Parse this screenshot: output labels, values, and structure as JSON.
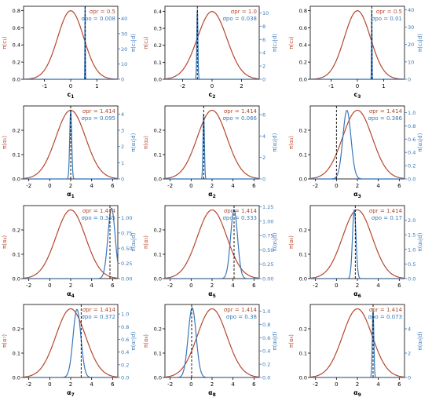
{
  "figure": {
    "background": "#ffffff"
  },
  "colors": {
    "prior": "#b5472d",
    "posterior": "#3a78b8",
    "axis": "#000000",
    "marker": "#000000"
  },
  "chart_data": [
    {
      "type": "line",
      "xlabel": "c",
      "xsub": "1",
      "ylabel_left": "π(c₁)",
      "ylabel_right": "π(c₁|d)",
      "annotation_pr": "σpr = 0.5",
      "annotation_po": "σpo = 0.008",
      "prior": {
        "mean": 0.0,
        "sd": 0.5
      },
      "posterior": {
        "mean": 0.55,
        "sd": 0.008
      },
      "marker": 0.55,
      "xlim": [
        -1.8,
        1.8
      ],
      "xticks": [
        -1,
        0,
        1
      ],
      "ylim_left": [
        0,
        0.85
      ],
      "yticks_left": [
        0.0,
        0.2,
        0.4,
        0.6,
        0.8
      ],
      "ylim_right": [
        0,
        48
      ],
      "yticks_right": [
        0,
        10,
        20,
        30,
        40
      ]
    },
    {
      "type": "line",
      "xlabel": "c",
      "xsub": "2",
      "ylabel_left": "π(c₂)",
      "ylabel_right": "π(c₂|d)",
      "annotation_pr": "σpr = 1.0",
      "annotation_po": "σpo = 0.038",
      "prior": {
        "mean": 0.0,
        "sd": 1.0
      },
      "posterior": {
        "mean": -1.0,
        "sd": 0.038
      },
      "marker": -1.0,
      "xlim": [
        -3.2,
        3.2
      ],
      "xticks": [
        -2,
        0,
        2
      ],
      "ylim_left": [
        0,
        0.43
      ],
      "yticks_left": [
        0.0,
        0.1,
        0.2,
        0.3,
        0.4
      ],
      "ylim_right": [
        0,
        11
      ],
      "yticks_right": [
        0,
        2,
        4,
        6,
        8,
        10
      ]
    },
    {
      "type": "line",
      "xlabel": "c",
      "xsub": "3",
      "ylabel_left": "π(c₃)",
      "ylabel_right": "π(c₃|d)",
      "annotation_pr": "σpr = 0.5",
      "annotation_po": "σpo = 0.01",
      "prior": {
        "mean": 0.0,
        "sd": 0.5
      },
      "posterior": {
        "mean": 0.55,
        "sd": 0.01
      },
      "marker": 0.55,
      "xlim": [
        -1.8,
        1.8
      ],
      "xticks": [
        -1,
        0,
        1
      ],
      "ylim_left": [
        0,
        0.85
      ],
      "yticks_left": [
        0.0,
        0.2,
        0.4,
        0.6,
        0.8
      ],
      "ylim_right": [
        0,
        42
      ],
      "yticks_right": [
        0,
        10,
        20,
        30,
        40
      ]
    },
    {
      "type": "line",
      "xlabel": "α",
      "xsub": "1",
      "ylabel_left": "π(α₁)",
      "ylabel_right": "π(α₁|d)",
      "annotation_pr": "σpr = 1.414",
      "annotation_po": "σpo = 0.095",
      "prior": {
        "mean": 2.0,
        "sd": 1.414
      },
      "posterior": {
        "mean": 2.0,
        "sd": 0.095
      },
      "marker": 2.0,
      "xlim": [
        -2.5,
        6.5
      ],
      "xticks": [
        -2,
        0,
        2,
        4,
        6
      ],
      "ylim_left": [
        0,
        0.3
      ],
      "yticks_left": [
        0.0,
        0.1,
        0.2
      ],
      "ylim_right": [
        0,
        4.5
      ],
      "yticks_right": [
        0,
        1,
        2,
        3,
        4
      ]
    },
    {
      "type": "line",
      "xlabel": "α",
      "xsub": "2",
      "ylabel_left": "π(α₂)",
      "ylabel_right": "π(α₂|d)",
      "annotation_pr": "σpr = 1.414",
      "annotation_po": "σpo = 0.066",
      "prior": {
        "mean": 2.0,
        "sd": 1.414
      },
      "posterior": {
        "mean": 1.2,
        "sd": 0.066
      },
      "marker": 1.2,
      "xlim": [
        -2.5,
        6.5
      ],
      "xticks": [
        -2,
        0,
        2,
        4,
        6
      ],
      "ylim_left": [
        0,
        0.3
      ],
      "yticks_left": [
        0.0,
        0.1,
        0.2
      ],
      "ylim_right": [
        0,
        6.8
      ],
      "yticks_right": [
        0,
        2,
        4,
        6
      ]
    },
    {
      "type": "line",
      "xlabel": "α",
      "xsub": "3",
      "ylabel_left": "π(α₃)",
      "ylabel_right": "π(α₃|d)",
      "annotation_pr": "σpr = 1.414",
      "annotation_po": "σpo = 0.386",
      "prior": {
        "mean": 2.0,
        "sd": 1.414
      },
      "posterior": {
        "mean": 1.0,
        "sd": 0.386
      },
      "marker": 0.0,
      "xlim": [
        -2.5,
        6.5
      ],
      "xticks": [
        -2,
        0,
        2,
        4,
        6
      ],
      "ylim_left": [
        0,
        0.3
      ],
      "yticks_left": [
        0.0,
        0.1,
        0.2
      ],
      "ylim_right": [
        0,
        1.1
      ],
      "yticks_right": [
        0.0,
        0.2,
        0.4,
        0.6,
        0.8,
        1.0
      ]
    },
    {
      "type": "line",
      "xlabel": "α",
      "xsub": "4",
      "ylabel_left": "π(α₄)",
      "ylabel_right": "π(α₄|d)",
      "annotation_pr": "σpr = 1.414",
      "annotation_po": "σpo = 0.345",
      "prior": {
        "mean": 2.0,
        "sd": 1.414
      },
      "posterior": {
        "mean": 5.9,
        "sd": 0.345
      },
      "marker": 5.75,
      "xlim": [
        -2.5,
        6.5
      ],
      "xticks": [
        -2,
        0,
        2,
        4,
        6
      ],
      "ylim_left": [
        0,
        0.3
      ],
      "yticks_left": [
        0.0,
        0.1,
        0.2
      ],
      "ylim_right": [
        0,
        1.2
      ],
      "yticks_right": [
        0.0,
        0.25,
        0.5,
        0.75,
        1.0
      ]
    },
    {
      "type": "line",
      "xlabel": "α",
      "xsub": "5",
      "ylabel_left": "π(α₅)",
      "ylabel_right": "π(α₅|d)",
      "annotation_pr": "σpr = 1.414",
      "annotation_po": "σpo = 0.333",
      "prior": {
        "mean": 2.0,
        "sd": 1.414
      },
      "posterior": {
        "mean": 4.1,
        "sd": 0.333
      },
      "marker": 4.1,
      "xlim": [
        -2.5,
        6.5
      ],
      "xticks": [
        -2,
        0,
        2,
        4,
        6
      ],
      "ylim_left": [
        0,
        0.3
      ],
      "yticks_left": [
        0.0,
        0.1,
        0.2
      ],
      "ylim_right": [
        0,
        1.27
      ],
      "yticks_right": [
        0.0,
        0.25,
        0.5,
        0.75,
        1.0,
        1.25
      ]
    },
    {
      "type": "line",
      "xlabel": "α",
      "xsub": "6",
      "ylabel_left": "π(α₆)",
      "ylabel_right": "π(α₆|d)",
      "annotation_pr": "σpr = 1.414",
      "annotation_po": "σpo = 0.17",
      "prior": {
        "mean": 2.0,
        "sd": 1.414
      },
      "posterior": {
        "mean": 1.7,
        "sd": 0.17
      },
      "marker": 1.8,
      "xlim": [
        -2.5,
        6.5
      ],
      "xticks": [
        -2,
        0,
        2,
        4,
        6
      ],
      "ylim_left": [
        0,
        0.3
      ],
      "yticks_left": [
        0.0,
        0.1,
        0.2
      ],
      "ylim_right": [
        0,
        2.5
      ],
      "yticks_right": [
        0.0,
        0.5,
        1.0,
        1.5,
        2.0
      ]
    },
    {
      "type": "line",
      "xlabel": "α",
      "xsub": "7",
      "ylabel_left": "π(α₇)",
      "ylabel_right": "π(α₇|d)",
      "annotation_pr": "σpr = 1.414",
      "annotation_po": "σpo = 0.372",
      "prior": {
        "mean": 2.0,
        "sd": 1.414
      },
      "posterior": {
        "mean": 2.6,
        "sd": 0.372
      },
      "marker": 3.0,
      "xlim": [
        -2.5,
        6.5
      ],
      "xticks": [
        -2,
        0,
        2,
        4,
        6
      ],
      "ylim_left": [
        0,
        0.3
      ],
      "yticks_left": [
        0.0,
        0.1,
        0.2
      ],
      "ylim_right": [
        0,
        1.15
      ],
      "yticks_right": [
        0.0,
        0.2,
        0.4,
        0.6,
        0.8,
        1.0
      ]
    },
    {
      "type": "line",
      "xlabel": "α",
      "xsub": "8",
      "ylabel_left": "π(α₈)",
      "ylabel_right": "π(α₈|d)",
      "annotation_pr": "σpr = 1.414",
      "annotation_po": "σpo = 0.38",
      "prior": {
        "mean": 2.0,
        "sd": 1.414
      },
      "posterior": {
        "mean": 0.1,
        "sd": 0.38
      },
      "marker": 0.05,
      "xlim": [
        -2.5,
        6.5
      ],
      "xticks": [
        -2,
        0,
        2,
        4,
        6
      ],
      "ylim_left": [
        0,
        0.3
      ],
      "yticks_left": [
        0.0,
        0.1,
        0.2
      ],
      "ylim_right": [
        0,
        1.1
      ],
      "yticks_right": [
        0.0,
        0.2,
        0.4,
        0.6,
        0.8,
        1.0
      ]
    },
    {
      "type": "line",
      "xlabel": "α",
      "xsub": "9",
      "ylabel_left": "π(α₉)",
      "ylabel_right": "π(α₉|d)",
      "annotation_pr": "σpr = 1.414",
      "annotation_po": "σpo = 0.073",
      "prior": {
        "mean": 2.0,
        "sd": 1.414
      },
      "posterior": {
        "mean": 3.5,
        "sd": 0.073
      },
      "marker": 3.5,
      "xlim": [
        -2.5,
        6.5
      ],
      "xticks": [
        -2,
        0,
        2,
        4,
        6
      ],
      "ylim_left": [
        0,
        0.3
      ],
      "yticks_left": [
        0.0,
        0.1,
        0.2
      ],
      "ylim_right": [
        0,
        6.0
      ],
      "yticks_right": [
        0,
        2,
        4
      ]
    }
  ]
}
